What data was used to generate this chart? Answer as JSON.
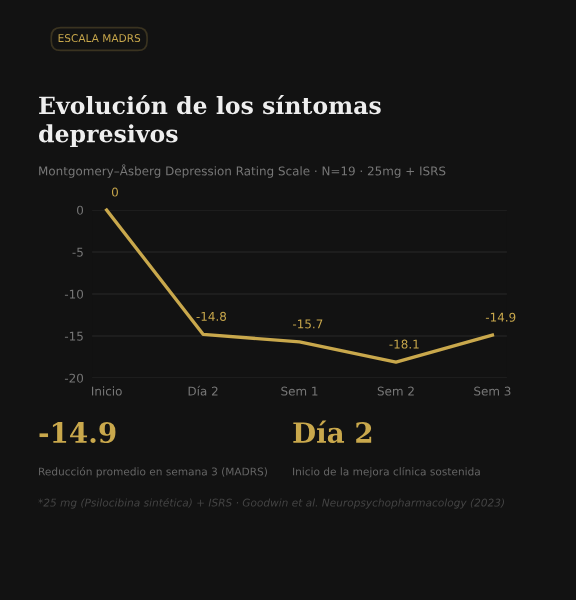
{
  "chart_data": {
    "type": "line",
    "title": "Evolución de los síntomas\ndepresivos",
    "subtitle": "Montgomery–Åsberg Depression Rating Scale · N=19 · 25mg + ISRS",
    "categories": [
      "Inicio",
      "Día 2",
      "Sem 1",
      "Sem 2",
      "Sem 3"
    ],
    "series": [
      {
        "color": "#c9a84c",
        "values": [
          0,
          -14.8,
          -15.7,
          -18.1,
          -14.9
        ]
      }
    ],
    "ylim": [
      -20,
      0
    ],
    "yticks": [
      0,
      -5,
      -10,
      -15,
      -20
    ],
    "grid": "y",
    "data_labels": true,
    "legend": false,
    "marker": "none",
    "line_style": "solid",
    "annotations": [
      "ESCALA MADRS",
      "-14.9",
      "Reducción promedio en semana 3 (MADRS)",
      "Día 2",
      "Inicio de la mejora clínica sostenida",
      "*25 mg (Psilocibina sintética) + ISRS · Goodwin et al. Neuropsychopharmacology (2023)"
    ]
  }
}
